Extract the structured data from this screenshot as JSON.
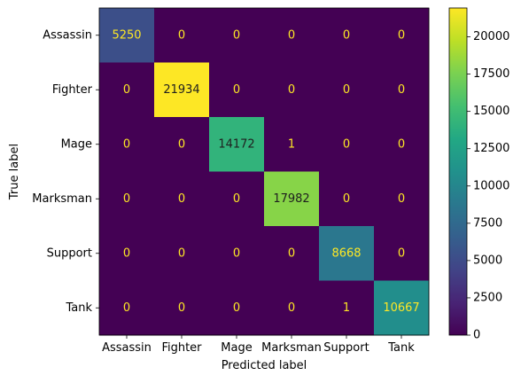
{
  "chart_data": {
    "type": "heatmap",
    "title": "",
    "xlabel": "Predicted label",
    "ylabel": "True label",
    "x_categories": [
      "Assassin",
      "Fighter",
      "Mage",
      "Marksman",
      "Support",
      "Tank"
    ],
    "y_categories": [
      "Assassin",
      "Fighter",
      "Mage",
      "Marksman",
      "Support",
      "Tank"
    ],
    "values": [
      [
        5250,
        0,
        0,
        0,
        0,
        0
      ],
      [
        0,
        21934,
        0,
        0,
        0,
        0
      ],
      [
        0,
        0,
        14172,
        1,
        0,
        0
      ],
      [
        0,
        0,
        0,
        17982,
        0,
        0
      ],
      [
        0,
        0,
        0,
        0,
        8668,
        0
      ],
      [
        0,
        0,
        0,
        0,
        1,
        10667
      ]
    ],
    "colormap": "viridis",
    "text_colors": {
      "on_dark": "#fde725",
      "on_light": "#1f1f1f"
    },
    "colorbar": {
      "vmin": 0,
      "vmax": 21934,
      "ticks": [
        0,
        2500,
        5000,
        7500,
        10000,
        12500,
        15000,
        17500,
        20000
      ]
    }
  }
}
